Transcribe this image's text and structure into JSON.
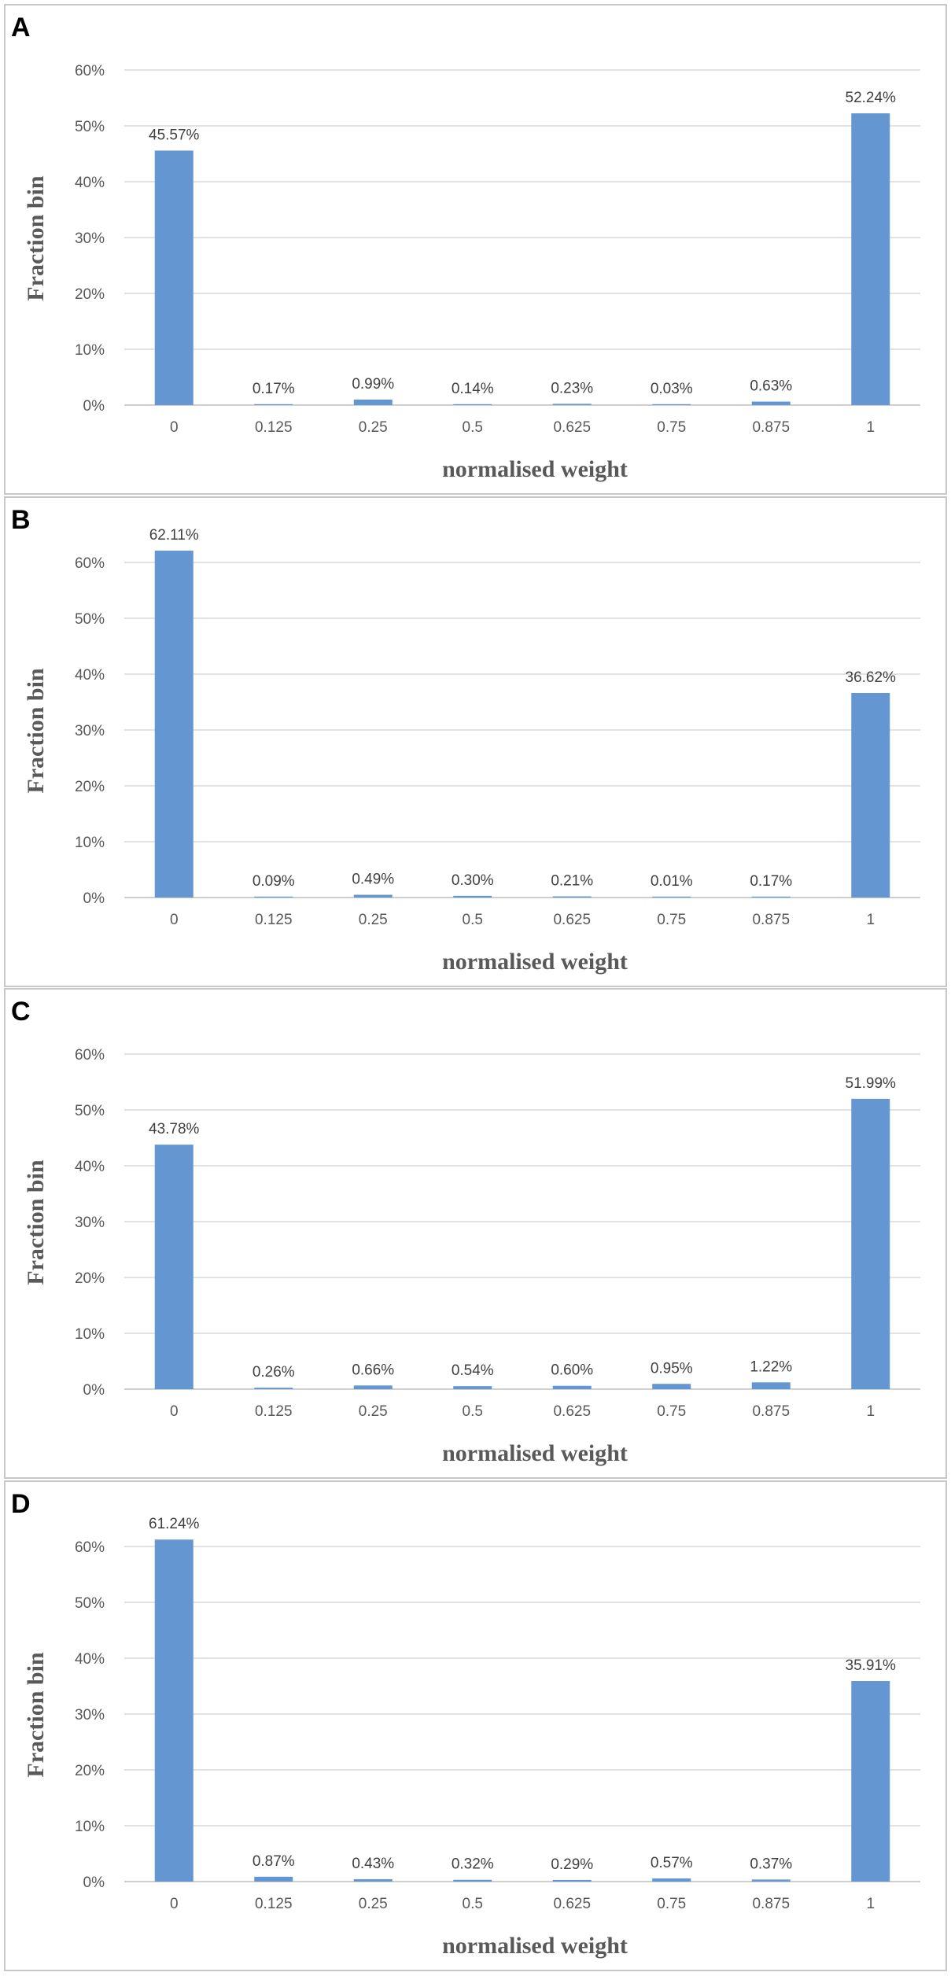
{
  "chart_data": [
    {
      "panel": "A",
      "type": "bar",
      "categories": [
        "0",
        "0.125",
        "0.25",
        "0.5",
        "0.625",
        "0.75",
        "0.875",
        "1"
      ],
      "values": [
        45.57,
        0.17,
        0.99,
        0.14,
        0.23,
        0.03,
        0.63,
        52.24
      ],
      "data_labels": [
        "45.57%",
        "0.17%",
        "0.99%",
        "0.14%",
        "0.23%",
        "0.03%",
        "0.63%",
        "52.24%"
      ],
      "yticks": [
        "0%",
        "10%",
        "20%",
        "30%",
        "40%",
        "50%",
        "60%"
      ],
      "ylim": [
        0,
        60
      ],
      "xlabel": "normalised weight",
      "ylabel": "Fraction bin",
      "grid": true,
      "bar_color": "#6497d1"
    },
    {
      "panel": "B",
      "type": "bar",
      "categories": [
        "0",
        "0.125",
        "0.25",
        "0.5",
        "0.625",
        "0.75",
        "0.875",
        "1"
      ],
      "values": [
        62.11,
        0.09,
        0.49,
        0.3,
        0.21,
        0.01,
        0.17,
        36.62
      ],
      "data_labels": [
        "62.11%",
        "0.09%",
        "0.49%",
        "0.30%",
        "0.21%",
        "0.01%",
        "0.17%",
        "36.62%"
      ],
      "yticks": [
        "0%",
        "10%",
        "20%",
        "30%",
        "40%",
        "50%",
        "60%"
      ],
      "ylim": [
        0,
        60
      ],
      "xlabel": "normalised weight",
      "ylabel": "Fraction bin",
      "grid": true,
      "bar_color": "#6497d1"
    },
    {
      "panel": "C",
      "type": "bar",
      "categories": [
        "0",
        "0.125",
        "0.25",
        "0.5",
        "0.625",
        "0.75",
        "0.875",
        "1"
      ],
      "values": [
        43.78,
        0.26,
        0.66,
        0.54,
        0.6,
        0.95,
        1.22,
        51.99
      ],
      "data_labels": [
        "43.78%",
        "0.26%",
        "0.66%",
        "0.54%",
        "0.60%",
        "0.95%",
        "1.22%",
        "51.99%"
      ],
      "yticks": [
        "0%",
        "10%",
        "20%",
        "30%",
        "40%",
        "50%",
        "60%"
      ],
      "ylim": [
        0,
        60
      ],
      "xlabel": "normalised weight",
      "ylabel": "Fraction bin",
      "grid": true,
      "bar_color": "#6497d1"
    },
    {
      "panel": "D",
      "type": "bar",
      "categories": [
        "0",
        "0.125",
        "0.25",
        "0.5",
        "0.625",
        "0.75",
        "0.875",
        "1"
      ],
      "values": [
        61.24,
        0.87,
        0.43,
        0.32,
        0.29,
        0.57,
        0.37,
        35.91
      ],
      "data_labels": [
        "61.24%",
        "0.87%",
        "0.43%",
        "0.32%",
        "0.29%",
        "0.57%",
        "0.37%",
        "35.91%"
      ],
      "yticks": [
        "0%",
        "10%",
        "20%",
        "30%",
        "40%",
        "50%",
        "60%"
      ],
      "ylim": [
        0,
        60
      ],
      "xlabel": "normalised weight",
      "ylabel": "Fraction bin",
      "grid": true,
      "bar_color": "#6497d1"
    }
  ]
}
